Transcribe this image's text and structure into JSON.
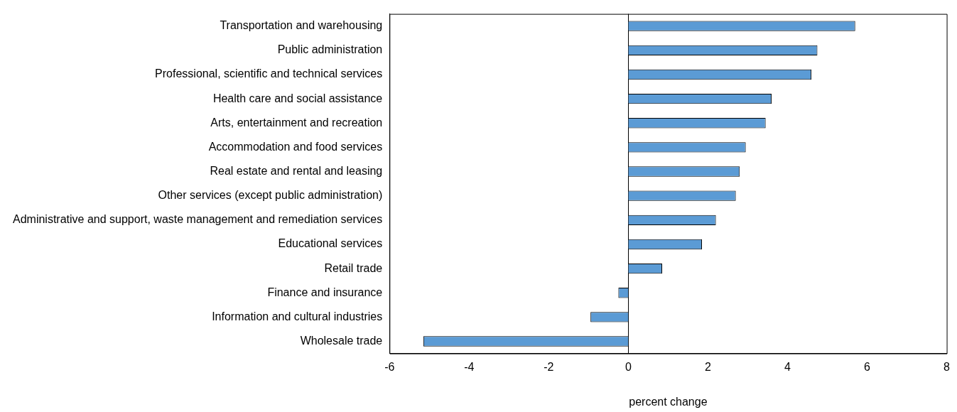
{
  "chart_data": {
    "type": "bar",
    "orientation": "horizontal",
    "xlabel": "percent change",
    "categories": [
      "Transportation and warehousing",
      "Public administration",
      "Professional, scientific and technical services",
      "Health care and social assistance",
      "Arts, entertainment and recreation",
      "Accommodation and food services",
      "Real estate and rental and leasing",
      "Other services (except public administration)",
      "Administrative and support, waste management and remediation services",
      "Educational services",
      "Retail trade",
      "Finance and insurance",
      "Information and cultural industries",
      "Wholesale trade"
    ],
    "values": [
      5.7,
      4.75,
      4.6,
      3.6,
      3.45,
      2.95,
      2.8,
      2.7,
      2.2,
      1.85,
      0.85,
      -0.25,
      -0.95,
      -5.15
    ],
    "color": "#5b9bd5",
    "ref_lines": [
      {
        "axis": "x",
        "value": 0,
        "color": "#000000"
      }
    ],
    "xlim": [
      -6,
      8
    ],
    "xticks": [
      -6,
      -4,
      -2,
      0,
      2,
      4,
      6,
      8
    ],
    "grid": false,
    "legend": false
  }
}
